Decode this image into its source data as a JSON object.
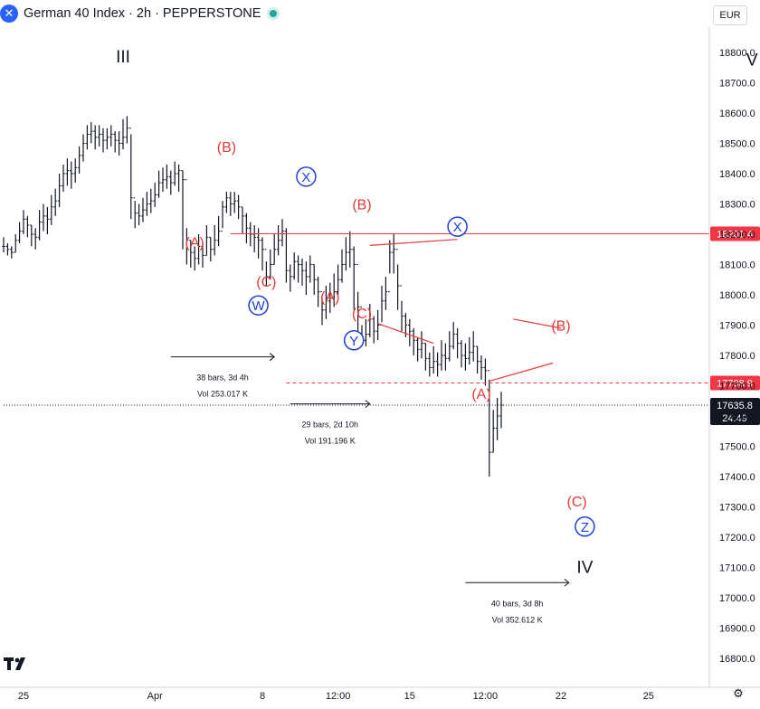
{
  "header": {
    "symbol_icon": "dax-x-icon",
    "title": "German 40 Index · 2h · PEPPERSTONE",
    "currency": "EUR",
    "live_color": "#26a69a"
  },
  "colors": {
    "wave_red": "#e53935",
    "wave_blue": "#1e3fd8",
    "label_black": "#131722",
    "price_tag_red": "#f23645",
    "current_tag": "#131722",
    "candle": "#131722"
  },
  "chart_data": {
    "type": "line",
    "title": "",
    "ylim": [
      16700,
      18950
    ],
    "y_ticks": [
      16800.0,
      16900.0,
      17000.0,
      17100.0,
      17200.0,
      17300.0,
      17400.0,
      17500.0,
      17600.0,
      17700.0,
      17800.0,
      17900.0,
      18000.0,
      18100.0,
      18200.0,
      18300.0,
      18400.0,
      18500.0,
      18600.0,
      18700.0,
      18800.0
    ],
    "x_ticks": [
      "25",
      "Apr",
      "8",
      "12:00",
      "15",
      "12:00",
      "22",
      "25"
    ],
    "x_tick_index": [
      5,
      38,
      65,
      84,
      102,
      121,
      140,
      162
    ],
    "series": [
      {
        "values": [
          18160,
          18150,
          18140,
          18180,
          18210,
          18250,
          18230,
          18200,
          18190,
          18240,
          18260,
          18250,
          18290,
          18310,
          18360,
          18400,
          18410,
          18400,
          18420,
          18460,
          18500,
          18530,
          18540,
          18520,
          18530,
          18510,
          18520,
          18530,
          18510,
          18500,
          18520,
          18550,
          18320,
          18270,
          18260,
          18280,
          18300,
          18310,
          18330,
          18370,
          18380,
          18390,
          18370,
          18400,
          18410,
          18380,
          18180,
          18140,
          18120,
          18160,
          18130,
          18190,
          18150,
          18180,
          18210,
          18290,
          18320,
          18300,
          18310,
          18290,
          18260,
          18220,
          18200,
          18190,
          18180,
          18150,
          18060,
          18100,
          18150,
          18180,
          18210,
          18080,
          18060,
          18110,
          18100,
          18080,
          18060,
          18100,
          18050,
          18010,
          17950,
          17980,
          17990,
          18010,
          18050,
          18100,
          18140,
          18150,
          18100,
          17960,
          17850,
          17870,
          17920,
          17880,
          17900,
          17980,
          18010,
          18140,
          18150,
          18030,
          17930,
          17900,
          17880,
          17850,
          17820,
          17840,
          17790,
          17760,
          17780,
          17770,
          17800,
          17790,
          17830,
          17870,
          17840,
          17800,
          17790,
          17810,
          17830,
          17780,
          17760,
          17750,
          17480,
          17560,
          17600,
          17635.8
        ],
        "bar_hl": [
          [
            18140,
            18190
          ],
          [
            18130,
            18170
          ],
          [
            18120,
            18160
          ],
          [
            18140,
            18200
          ],
          [
            18170,
            18240
          ],
          [
            18200,
            18280
          ],
          [
            18190,
            18260
          ],
          [
            18160,
            18230
          ],
          [
            18150,
            18220
          ],
          [
            18180,
            18280
          ],
          [
            18210,
            18300
          ],
          [
            18200,
            18290
          ],
          [
            18230,
            18330
          ],
          [
            18260,
            18350
          ],
          [
            18290,
            18400
          ],
          [
            18340,
            18430
          ],
          [
            18360,
            18450
          ],
          [
            18350,
            18440
          ],
          [
            18370,
            18450
          ],
          [
            18400,
            18490
          ],
          [
            18440,
            18530
          ],
          [
            18480,
            18560
          ],
          [
            18500,
            18570
          ],
          [
            18480,
            18560
          ],
          [
            18490,
            18560
          ],
          [
            18470,
            18550
          ],
          [
            18480,
            18550
          ],
          [
            18490,
            18560
          ],
          [
            18470,
            18540
          ],
          [
            18460,
            18540
          ],
          [
            18480,
            18580
          ],
          [
            18500,
            18590
          ],
          [
            18250,
            18530
          ],
          [
            18220,
            18310
          ],
          [
            18230,
            18300
          ],
          [
            18240,
            18320
          ],
          [
            18260,
            18340
          ],
          [
            18270,
            18350
          ],
          [
            18290,
            18370
          ],
          [
            18320,
            18410
          ],
          [
            18340,
            18420
          ],
          [
            18350,
            18430
          ],
          [
            18330,
            18410
          ],
          [
            18360,
            18440
          ],
          [
            18340,
            18430
          ],
          [
            18150,
            18410
          ],
          [
            18100,
            18220
          ],
          [
            18090,
            18180
          ],
          [
            18080,
            18160
          ],
          [
            18100,
            18200
          ],
          [
            18090,
            18170
          ],
          [
            18130,
            18230
          ],
          [
            18110,
            18190
          ],
          [
            18130,
            18230
          ],
          [
            18160,
            18260
          ],
          [
            18220,
            18310
          ],
          [
            18270,
            18340
          ],
          [
            18260,
            18340
          ],
          [
            18270,
            18340
          ],
          [
            18250,
            18330
          ],
          [
            18200,
            18290
          ],
          [
            18170,
            18270
          ],
          [
            18160,
            18240
          ],
          [
            18140,
            18230
          ],
          [
            18120,
            18220
          ],
          [
            18080,
            18190
          ],
          [
            18030,
            18110
          ],
          [
            18050,
            18150
          ],
          [
            18100,
            18200
          ],
          [
            18130,
            18230
          ],
          [
            18160,
            18250
          ],
          [
            18040,
            18220
          ],
          [
            18010,
            18100
          ],
          [
            18050,
            18140
          ],
          [
            18040,
            18130
          ],
          [
            18030,
            18120
          ],
          [
            18000,
            18110
          ],
          [
            18040,
            18130
          ],
          [
            18000,
            18100
          ],
          [
            17960,
            18060
          ],
          [
            17900,
            17990
          ],
          [
            17920,
            18030
          ],
          [
            17940,
            18040
          ],
          [
            17960,
            18070
          ],
          [
            18000,
            18100
          ],
          [
            18040,
            18150
          ],
          [
            18080,
            18190
          ],
          [
            18090,
            18210
          ],
          [
            17950,
            18160
          ],
          [
            17860,
            18010
          ],
          [
            17830,
            17900
          ],
          [
            17830,
            17920
          ],
          [
            17860,
            17970
          ],
          [
            17840,
            17930
          ],
          [
            17850,
            17950
          ],
          [
            17910,
            18030
          ],
          [
            17950,
            18060
          ],
          [
            18070,
            18180
          ],
          [
            18070,
            18200
          ],
          [
            17950,
            18100
          ],
          [
            17880,
            17980
          ],
          [
            17860,
            17940
          ],
          [
            17830,
            17920
          ],
          [
            17800,
            17890
          ],
          [
            17780,
            17860
          ],
          [
            17790,
            17880
          ],
          [
            17750,
            17840
          ],
          [
            17730,
            17810
          ],
          [
            17740,
            17830
          ],
          [
            17730,
            17810
          ],
          [
            17750,
            17850
          ],
          [
            17750,
            17840
          ],
          [
            17780,
            17880
          ],
          [
            17820,
            17910
          ],
          [
            17790,
            17890
          ],
          [
            17760,
            17850
          ],
          [
            17750,
            17840
          ],
          [
            17770,
            17860
          ],
          [
            17780,
            17880
          ],
          [
            17740,
            17830
          ],
          [
            17720,
            17800
          ],
          [
            17700,
            17790
          ],
          [
            17400,
            17720
          ],
          [
            17480,
            17620
          ],
          [
            17520,
            17660
          ],
          [
            17560,
            17680
          ]
        ]
      }
    ],
    "wave_labels": [
      {
        "text": "III",
        "i": 15,
        "price": 18785,
        "color": "black"
      },
      {
        "text": "(B)",
        "i": 28,
        "price": 18490,
        "color": "red"
      },
      {
        "text": "(A)",
        "i": 24,
        "price": 18175,
        "color": "red"
      },
      {
        "text": "(C)",
        "i": 33,
        "price": 18045,
        "color": "red"
      },
      {
        "text": "W",
        "i": 32,
        "price": 17965,
        "color": "blue-circle"
      },
      {
        "text": "X",
        "i": 38,
        "price": 18390,
        "color": "blue-circle"
      },
      {
        "text": "(B)",
        "i": 45,
        "price": 18300,
        "color": "red"
      },
      {
        "text": "(A)",
        "i": 41,
        "price": 17995,
        "color": "red"
      },
      {
        "text": "(C)",
        "i": 45,
        "price": 17940,
        "color": "red"
      },
      {
        "text": "Y",
        "i": 44,
        "price": 17850,
        "color": "blue-circle"
      },
      {
        "text": "X",
        "i": 57,
        "price": 18225,
        "color": "blue-circle"
      },
      {
        "text": "(B)",
        "i": 70,
        "price": 17900,
        "color": "red"
      },
      {
        "text": "(A)",
        "i": 60,
        "price": 17675,
        "color": "red"
      },
      {
        "text": "(C)",
        "i": 72,
        "price": 17320,
        "color": "red"
      },
      {
        "text": "Z",
        "i": 73,
        "price": 17235,
        "color": "blue-circle"
      },
      {
        "text": "IV",
        "i": 73,
        "price": 17100,
        "color": "black"
      },
      {
        "text": "V",
        "i": 94,
        "price": 18775,
        "color": "black"
      }
    ],
    "horizontal_lines": [
      {
        "price": 18201.4,
        "label": "18201.4",
        "style": "solid",
        "color": "red",
        "from_i": 57
      },
      {
        "price": 17708.9,
        "label": "17708.9",
        "style": "dashed",
        "color": "red",
        "from_i": 71
      },
      {
        "price": 17635.8,
        "label": "17635.8",
        "sublabel": "24:49",
        "style": "dotted",
        "color": "black",
        "from_i": 0
      }
    ],
    "trendlines": [
      {
        "from": [
          46,
          18163
        ],
        "to": [
          57,
          18183
        ]
      },
      {
        "from": [
          47,
          17905
        ],
        "to": [
          54,
          17840
        ]
      },
      {
        "from": [
          64,
          17920
        ],
        "to": [
          70,
          17890
        ]
      },
      {
        "from": [
          61,
          17715
        ],
        "to": [
          69,
          17775
        ]
      }
    ],
    "measures": [
      {
        "bars": "38 bars, 3d 4h",
        "vol": "Vol 253.017 K",
        "from_i": 21,
        "to_i": 34,
        "price": 17795
      },
      {
        "bars": "29 bars, 2d 10h",
        "vol": "Vol 191.196 K",
        "from_i": 36,
        "to_i": 46,
        "price": 17640
      },
      {
        "bars": "40 bars, 3d 8h",
        "vol": "Vol 352.612 K",
        "from_i": 58,
        "to_i": 71,
        "price": 17050
      }
    ]
  },
  "footer": {
    "logo": "tradingview-logo",
    "settings_icon": "gear-icon"
  }
}
